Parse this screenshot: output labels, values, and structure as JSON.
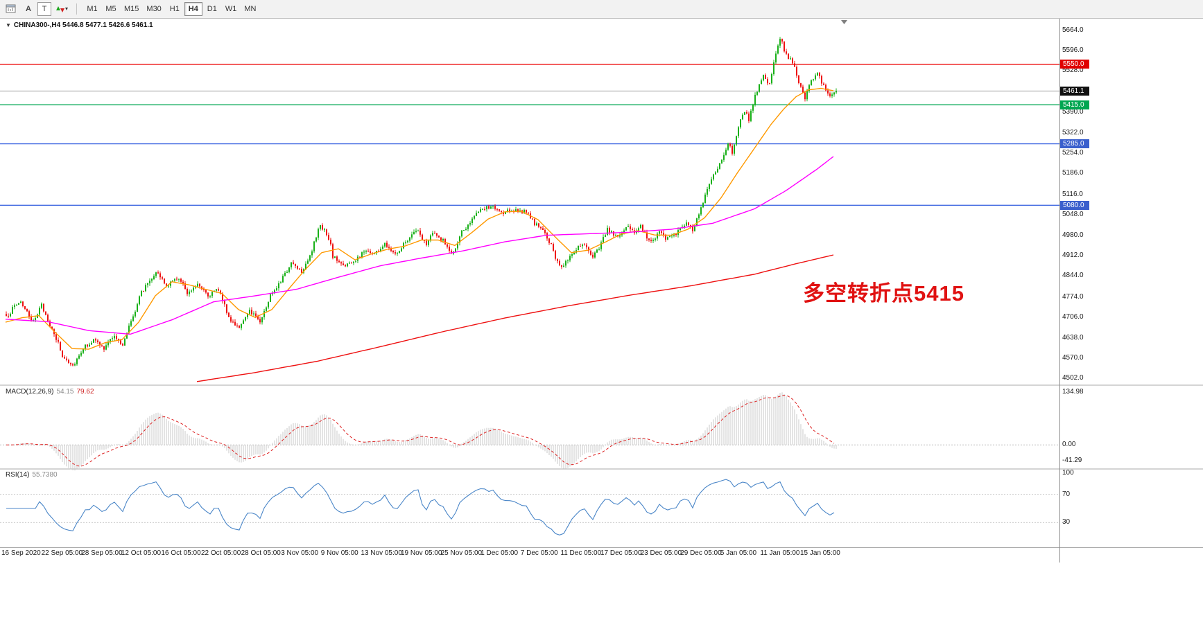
{
  "toolbar": {
    "tool_a": "A",
    "tool_t": "T",
    "timeframes": [
      {
        "label": "M1",
        "active": false
      },
      {
        "label": "M5",
        "active": false
      },
      {
        "label": "M15",
        "active": false
      },
      {
        "label": "M30",
        "active": false
      },
      {
        "label": "H1",
        "active": false
      },
      {
        "label": "H4",
        "active": true
      },
      {
        "label": "D1",
        "active": false
      },
      {
        "label": "W1",
        "active": false
      },
      {
        "label": "MN",
        "active": false
      }
    ]
  },
  "chart": {
    "info_line": "CHINA300-,H4 5446.8 5477.1 5426.6 5461.1",
    "annotation": {
      "text": "多空转折点5415",
      "color": "#e01212"
    },
    "price_tags": [
      {
        "label": "5550.0",
        "value": 5550.0,
        "bg": "#e00000"
      },
      {
        "label": "5461.1",
        "value": 5461.1,
        "bg": "#111111"
      },
      {
        "label": "5415.0",
        "value": 5415.0,
        "bg": "#00a651"
      },
      {
        "label": "5285.0",
        "value": 5285.0,
        "bg": "#3a5fcd"
      },
      {
        "label": "5080.0",
        "value": 5080.0,
        "bg": "#3a5fcd"
      }
    ],
    "hlines": [
      {
        "value": 5550.0,
        "color": "#ee1111",
        "width": 1.4
      },
      {
        "value": 5461.1,
        "color": "#a0a0a0",
        "width": 1
      },
      {
        "value": 5415.0,
        "color": "#00a651",
        "width": 1.4
      },
      {
        "value": 5285.0,
        "color": "#4169e1",
        "width": 1.4
      },
      {
        "value": 5080.0,
        "color": "#4169e1",
        "width": 1.4
      }
    ]
  },
  "chart_data": {
    "type": "candlestick",
    "symbol": "CHINA300-",
    "timeframe": "H4",
    "ohlc": {
      "open": 5446.8,
      "high": 5477.1,
      "low": 5426.6,
      "close": 5461.1
    },
    "num_candles": 400,
    "noise": 7,
    "wick": 9,
    "up_color": "#18b018",
    "down_color": "#ee1111",
    "y_axis": {
      "top_price": 5700,
      "bottom_price": 4480,
      "ticks": [
        {
          "label": "5664.0",
          "value": 5664
        },
        {
          "label": "5596.0",
          "value": 5596
        },
        {
          "label": "5528.0",
          "value": 5528
        },
        {
          "label": "5390.0",
          "value": 5390
        },
        {
          "label": "5322.0",
          "value": 5322
        },
        {
          "label": "5254.0",
          "value": 5254
        },
        {
          "label": "5186.0",
          "value": 5186
        },
        {
          "label": "5116.0",
          "value": 5116
        },
        {
          "label": "5048.0",
          "value": 5048
        },
        {
          "label": "4980.0",
          "value": 4980
        },
        {
          "label": "4912.0",
          "value": 4912
        },
        {
          "label": "4844.0",
          "value": 4844
        },
        {
          "label": "4774.0",
          "value": 4774
        },
        {
          "label": "4706.0",
          "value": 4706
        },
        {
          "label": "4638.0",
          "value": 4638
        },
        {
          "label": "4570.0",
          "value": 4570
        },
        {
          "label": "4502.0",
          "value": 4502
        }
      ]
    },
    "x_axis": {
      "labels": [
        "16 Sep 2020",
        "22 Sep 05:00",
        "28 Sep 05:00",
        "12 Oct 05:00",
        "16 Oct 05:00",
        "22 Oct 05:00",
        "28 Oct 05:00",
        "3 Nov 05:00",
        "9 Nov 05:00",
        "13 Nov 05:00",
        "19 Nov 05:00",
        "25 Nov 05:00",
        "1 Dec 05:00",
        "7 Dec 05:00",
        "11 Dec 05:00",
        "17 Dec 05:00",
        "23 Dec 05:00",
        "29 Dec 05:00",
        "5 Jan 05:00",
        "11 Jan 05:00",
        "15 Jan 05:00"
      ]
    },
    "price_keyframes": [
      [
        0,
        4705
      ],
      [
        4,
        4745
      ],
      [
        7,
        4760
      ],
      [
        10,
        4720
      ],
      [
        12,
        4690
      ],
      [
        15,
        4720
      ],
      [
        17,
        4745
      ],
      [
        20,
        4700
      ],
      [
        22,
        4660
      ],
      [
        25,
        4620
      ],
      [
        27,
        4575
      ],
      [
        30,
        4560
      ],
      [
        32,
        4545
      ],
      [
        35,
        4580
      ],
      [
        37,
        4605
      ],
      [
        40,
        4620
      ],
      [
        42,
        4630
      ],
      [
        45,
        4615
      ],
      [
        47,
        4600
      ],
      [
        50,
        4630
      ],
      [
        52,
        4650
      ],
      [
        54,
        4625
      ],
      [
        56,
        4610
      ],
      [
        59,
        4680
      ],
      [
        62,
        4730
      ],
      [
        64,
        4780
      ],
      [
        67,
        4810
      ],
      [
        69,
        4830
      ],
      [
        72,
        4860
      ],
      [
        74,
        4840
      ],
      [
        77,
        4810
      ],
      [
        80,
        4825
      ],
      [
        82,
        4840
      ],
      [
        85,
        4815
      ],
      [
        87,
        4790
      ],
      [
        90,
        4805
      ],
      [
        92,
        4820
      ],
      [
        95,
        4800
      ],
      [
        97,
        4780
      ],
      [
        100,
        4790
      ],
      [
        102,
        4800
      ],
      [
        105,
        4750
      ],
      [
        107,
        4700
      ],
      [
        110,
        4685
      ],
      [
        112,
        4675
      ],
      [
        115,
        4700
      ],
      [
        117,
        4730
      ],
      [
        120,
        4710
      ],
      [
        122,
        4695
      ],
      [
        125,
        4740
      ],
      [
        127,
        4780
      ],
      [
        130,
        4810
      ],
      [
        132,
        4830
      ],
      [
        135,
        4860
      ],
      [
        137,
        4890
      ],
      [
        140,
        4875
      ],
      [
        142,
        4860
      ],
      [
        145,
        4900
      ],
      [
        147,
        4930
      ],
      [
        149,
        4975
      ],
      [
        151,
        5015
      ],
      [
        153,
        4995
      ],
      [
        154,
        4980
      ],
      [
        156,
        4945
      ],
      [
        157,
        4910
      ],
      [
        160,
        4890
      ],
      [
        162,
        4880
      ],
      [
        165,
        4885
      ],
      [
        167,
        4890
      ],
      [
        170,
        4910
      ],
      [
        172,
        4930
      ],
      [
        175,
        4925
      ],
      [
        177,
        4920
      ],
      [
        180,
        4935
      ],
      [
        182,
        4950
      ],
      [
        185,
        4935
      ],
      [
        187,
        4920
      ],
      [
        190,
        4940
      ],
      [
        192,
        4960
      ],
      [
        195,
        4980
      ],
      [
        197,
        5000
      ],
      [
        200,
        4970
      ],
      [
        202,
        4945
      ],
      [
        205,
        4990
      ],
      [
        207,
        4975
      ],
      [
        210,
        4965
      ],
      [
        212,
        4940
      ],
      [
        214,
        4915
      ],
      [
        217,
        4950
      ],
      [
        219,
        4990
      ],
      [
        222,
        5015
      ],
      [
        224,
        5040
      ],
      [
        227,
        5055
      ],
      [
        230,
        5070
      ],
      [
        234,
        5075
      ],
      [
        237,
        5060
      ],
      [
        239,
        5050
      ],
      [
        242,
        5065
      ],
      [
        247,
        5062
      ],
      [
        249,
        5058
      ],
      [
        252,
        5040
      ],
      [
        254,
        5020
      ],
      [
        257,
        5000
      ],
      [
        259,
        4985
      ],
      [
        262,
        4945
      ],
      [
        264,
        4905
      ],
      [
        267,
        4875
      ],
      [
        270,
        4900
      ],
      [
        272,
        4920
      ],
      [
        275,
        4940
      ],
      [
        277,
        4950
      ],
      [
        280,
        4925
      ],
      [
        282,
        4905
      ],
      [
        285,
        4940
      ],
      [
        287,
        4975
      ],
      [
        289,
        5000
      ],
      [
        292,
        4985
      ],
      [
        294,
        4975
      ],
      [
        297,
        4995
      ],
      [
        299,
        5010
      ],
      [
        302,
        4990
      ],
      [
        305,
        5010
      ],
      [
        307,
        4985
      ],
      [
        309,
        4960
      ],
      [
        312,
        4975
      ],
      [
        314,
        4990
      ],
      [
        317,
        4970
      ],
      [
        320,
        4978
      ],
      [
        322,
        4985
      ],
      [
        325,
        5005
      ],
      [
        327,
        5025
      ],
      [
        330,
        5000
      ],
      [
        332,
        5035
      ],
      [
        334,
        5070
      ],
      [
        337,
        5130
      ],
      [
        340,
        5180
      ],
      [
        344,
        5230
      ],
      [
        347,
        5290
      ],
      [
        349,
        5255
      ],
      [
        352,
        5345
      ],
      [
        355,
        5395
      ],
      [
        357,
        5365
      ],
      [
        360,
        5450
      ],
      [
        364,
        5510
      ],
      [
        367,
        5480
      ],
      [
        369,
        5560
      ],
      [
        372,
        5640
      ],
      [
        374,
        5600
      ],
      [
        376,
        5575
      ],
      [
        379,
        5540
      ],
      [
        382,
        5470
      ],
      [
        384,
        5435
      ],
      [
        387,
        5495
      ],
      [
        390,
        5520
      ],
      [
        393,
        5475
      ],
      [
        396,
        5450
      ],
      [
        399,
        5461
      ]
    ],
    "moving_averages": [
      {
        "name": "fast-ma",
        "color": "#ff9900",
        "keyframes": [
          [
            0,
            4690
          ],
          [
            8,
            4705
          ],
          [
            16,
            4712
          ],
          [
            24,
            4655
          ],
          [
            32,
            4602
          ],
          [
            40,
            4600
          ],
          [
            48,
            4622
          ],
          [
            56,
            4632
          ],
          [
            64,
            4690
          ],
          [
            72,
            4778
          ],
          [
            80,
            4825
          ],
          [
            88,
            4815
          ],
          [
            96,
            4800
          ],
          [
            104,
            4786
          ],
          [
            112,
            4732
          ],
          [
            120,
            4706
          ],
          [
            128,
            4732
          ],
          [
            136,
            4800
          ],
          [
            144,
            4865
          ],
          [
            152,
            4922
          ],
          [
            160,
            4935
          ],
          [
            168,
            4898
          ],
          [
            176,
            4918
          ],
          [
            184,
            4934
          ],
          [
            192,
            4944
          ],
          [
            200,
            4964
          ],
          [
            208,
            4964
          ],
          [
            216,
            4946
          ],
          [
            224,
            4988
          ],
          [
            232,
            5034
          ],
          [
            240,
            5058
          ],
          [
            248,
            5060
          ],
          [
            256,
            5032
          ],
          [
            264,
            4976
          ],
          [
            272,
            4922
          ],
          [
            280,
            4930
          ],
          [
            288,
            4956
          ],
          [
            296,
            4984
          ],
          [
            304,
            4995
          ],
          [
            312,
            4981
          ],
          [
            320,
            4980
          ],
          [
            328,
            5000
          ],
          [
            336,
            5038
          ],
          [
            344,
            5105
          ],
          [
            352,
            5190
          ],
          [
            360,
            5270
          ],
          [
            368,
            5350
          ],
          [
            374,
            5400
          ],
          [
            380,
            5442
          ],
          [
            386,
            5465
          ],
          [
            392,
            5470
          ],
          [
            399,
            5461
          ]
        ]
      },
      {
        "name": "medium-ma",
        "color": "#ff00ff",
        "keyframes": [
          [
            0,
            4700
          ],
          [
            20,
            4692
          ],
          [
            40,
            4662
          ],
          [
            60,
            4650
          ],
          [
            80,
            4698
          ],
          [
            100,
            4758
          ],
          [
            120,
            4778
          ],
          [
            140,
            4800
          ],
          [
            160,
            4840
          ],
          [
            180,
            4878
          ],
          [
            200,
            4904
          ],
          [
            220,
            4928
          ],
          [
            240,
            4958
          ],
          [
            260,
            4980
          ],
          [
            280,
            4985
          ],
          [
            300,
            4990
          ],
          [
            320,
            5000
          ],
          [
            340,
            5020
          ],
          [
            360,
            5068
          ],
          [
            375,
            5128
          ],
          [
            390,
            5200
          ],
          [
            399,
            5248
          ]
        ]
      },
      {
        "name": "slow-ma",
        "color": "#ee1111",
        "keyframes": [
          [
            92,
            4492
          ],
          [
            120,
            4522
          ],
          [
            150,
            4560
          ],
          [
            180,
            4608
          ],
          [
            210,
            4658
          ],
          [
            240,
            4704
          ],
          [
            270,
            4744
          ],
          [
            300,
            4780
          ],
          [
            330,
            4812
          ],
          [
            360,
            4850
          ],
          [
            380,
            4885
          ],
          [
            399,
            4916
          ]
        ]
      }
    ]
  },
  "indicators": {
    "macd": {
      "name": "MACD(12,26,9)",
      "value_main": "54.15",
      "value_signal": "79.62",
      "fast": 12,
      "slow": 26,
      "signal": 9,
      "axis_ticks": [
        "134.98",
        "0.00",
        "-41.29"
      ],
      "axis_values": [
        134.98,
        0,
        -41.29
      ],
      "hist_color": "#c8c8c8",
      "signal_color": "#dd2222"
    },
    "rsi": {
      "name": "RSI(14)",
      "value": "55.7380",
      "period": 14,
      "axis_ticks": [
        "100",
        "70",
        "30"
      ],
      "axis_values": [
        100,
        70,
        30
      ],
      "levels": [
        70,
        30
      ],
      "line_color": "#4a86c8"
    }
  }
}
